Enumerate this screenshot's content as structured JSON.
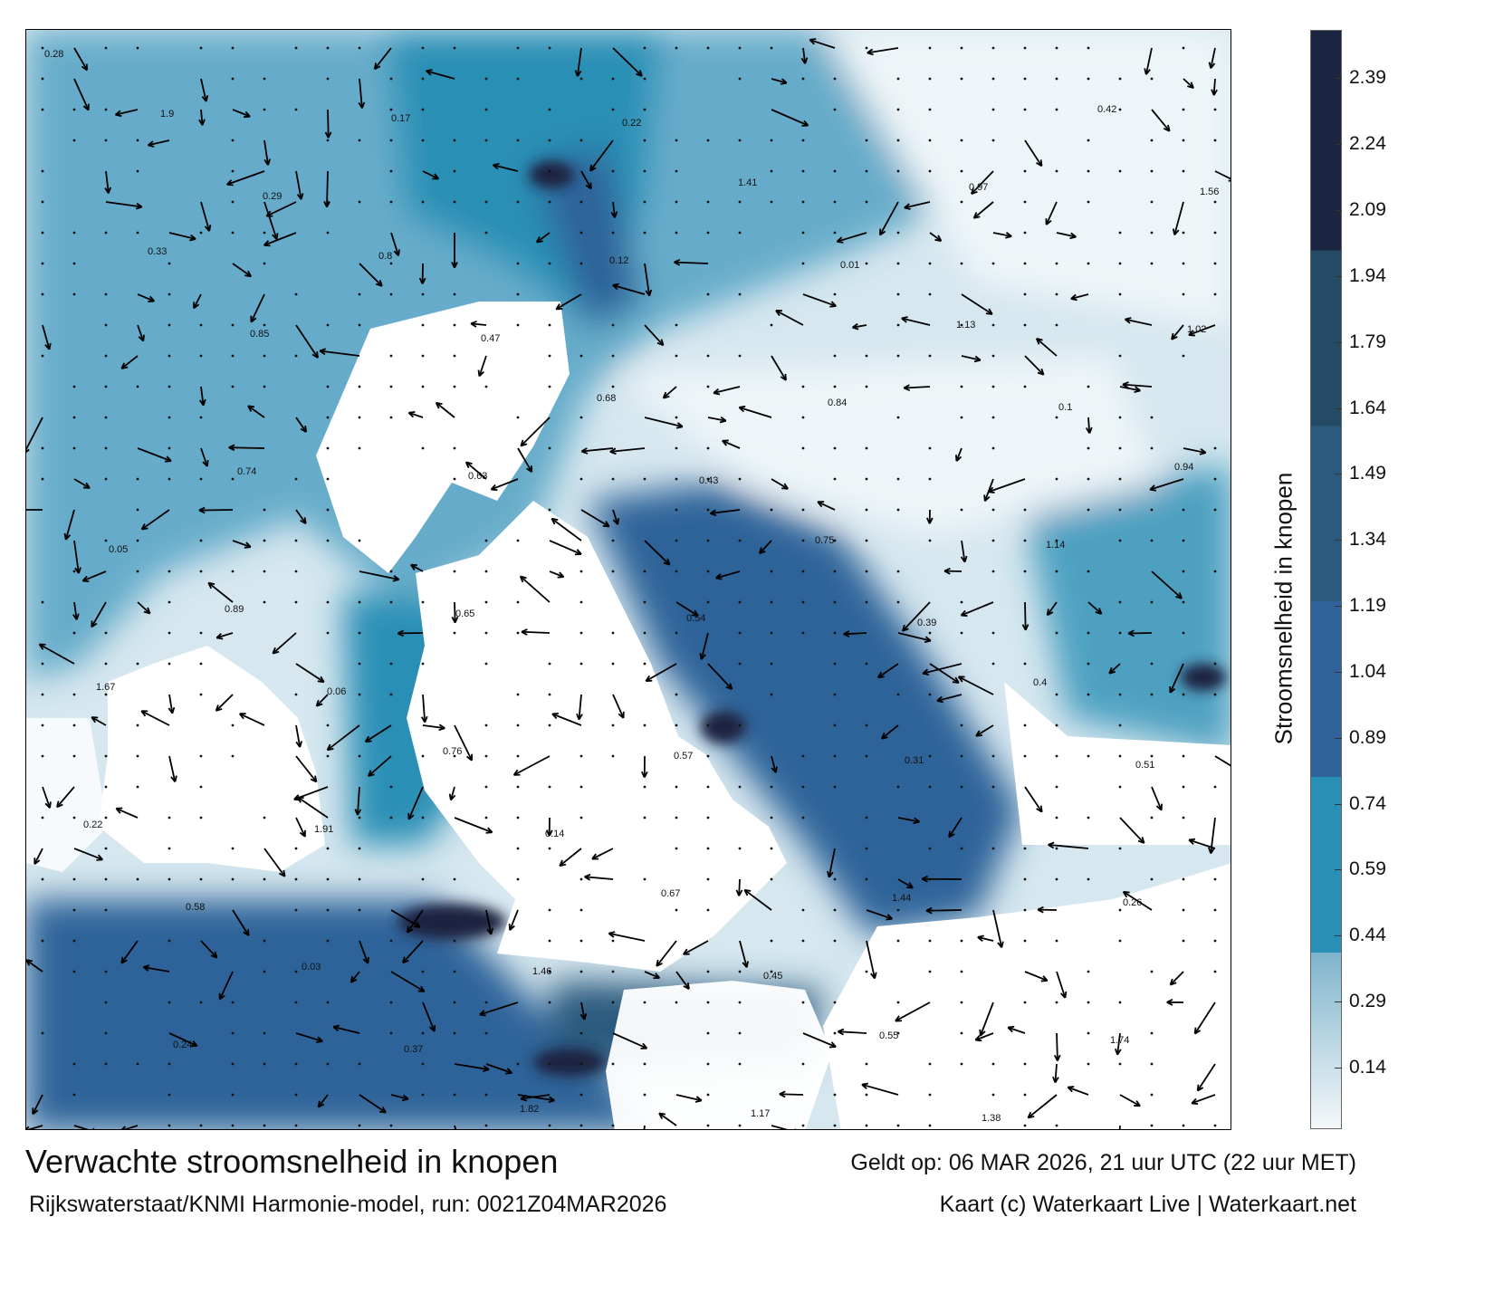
{
  "title": "Verwachte stroomsnelheid in knopen",
  "valid_time": "Geldt op: 06 MAR 2026, 21 uur UTC (22 uur MET)",
  "model_run": "Rijkswaterstaat/KNMI Harmonie-model, run: 0021Z04MAR2026",
  "credit": "Kaart (c) Waterkaart Live | Waterkaart.net",
  "colorbar": {
    "label": "Stroomsnelheid in knopen",
    "range": [
      0,
      2.5
    ],
    "ticks": [
      "2.39",
      "2.24",
      "2.09",
      "1.94",
      "1.79",
      "1.64",
      "1.49",
      "1.34",
      "1.19",
      "1.04",
      "0.89",
      "0.74",
      "0.59",
      "0.44",
      "0.29",
      "0.14"
    ],
    "bands": [
      {
        "from": 0,
        "to": 0.4,
        "color_low": "#f4f8fa",
        "color_high": "#7fb4cc"
      },
      {
        "from": 0.4,
        "to": 0.8,
        "color": "#2a8fb5"
      },
      {
        "from": 0.8,
        "to": 1.2,
        "color": "#2f6399"
      },
      {
        "from": 1.2,
        "to": 1.6,
        "color": "#2b5a7e"
      },
      {
        "from": 1.6,
        "to": 2.0,
        "color": "#264b66"
      },
      {
        "from": 2.0,
        "to": 2.5,
        "color": "#1b2440"
      }
    ]
  },
  "map": {
    "current_labels": [
      "0.28",
      "0.29",
      "0.47",
      "0.43",
      "0.39",
      "0.51",
      "0.58",
      "0.37",
      "0.22",
      "0.01",
      "0.1",
      "0.05",
      "0.06",
      "0.14",
      "0.45",
      "1.38",
      "1.56",
      "0.85",
      "0.63",
      "0.54",
      "0.31",
      "0.26",
      "0.24",
      "0.17",
      "0.12",
      "0.84",
      "1.14",
      "1.67",
      "1.91",
      "1.46",
      "1.17",
      "0.97",
      "1.02",
      "0.74",
      "0.65",
      "0.57",
      "1.44",
      "1.74",
      "1.9",
      "0.8",
      "0.68",
      "0.75",
      "0.4",
      "0.22",
      "0.03",
      "1.82",
      "1.41",
      "1.13",
      "0.94",
      "0.89",
      "0.76",
      "0.67",
      "0.55",
      "0.42",
      "0.33"
    ]
  }
}
